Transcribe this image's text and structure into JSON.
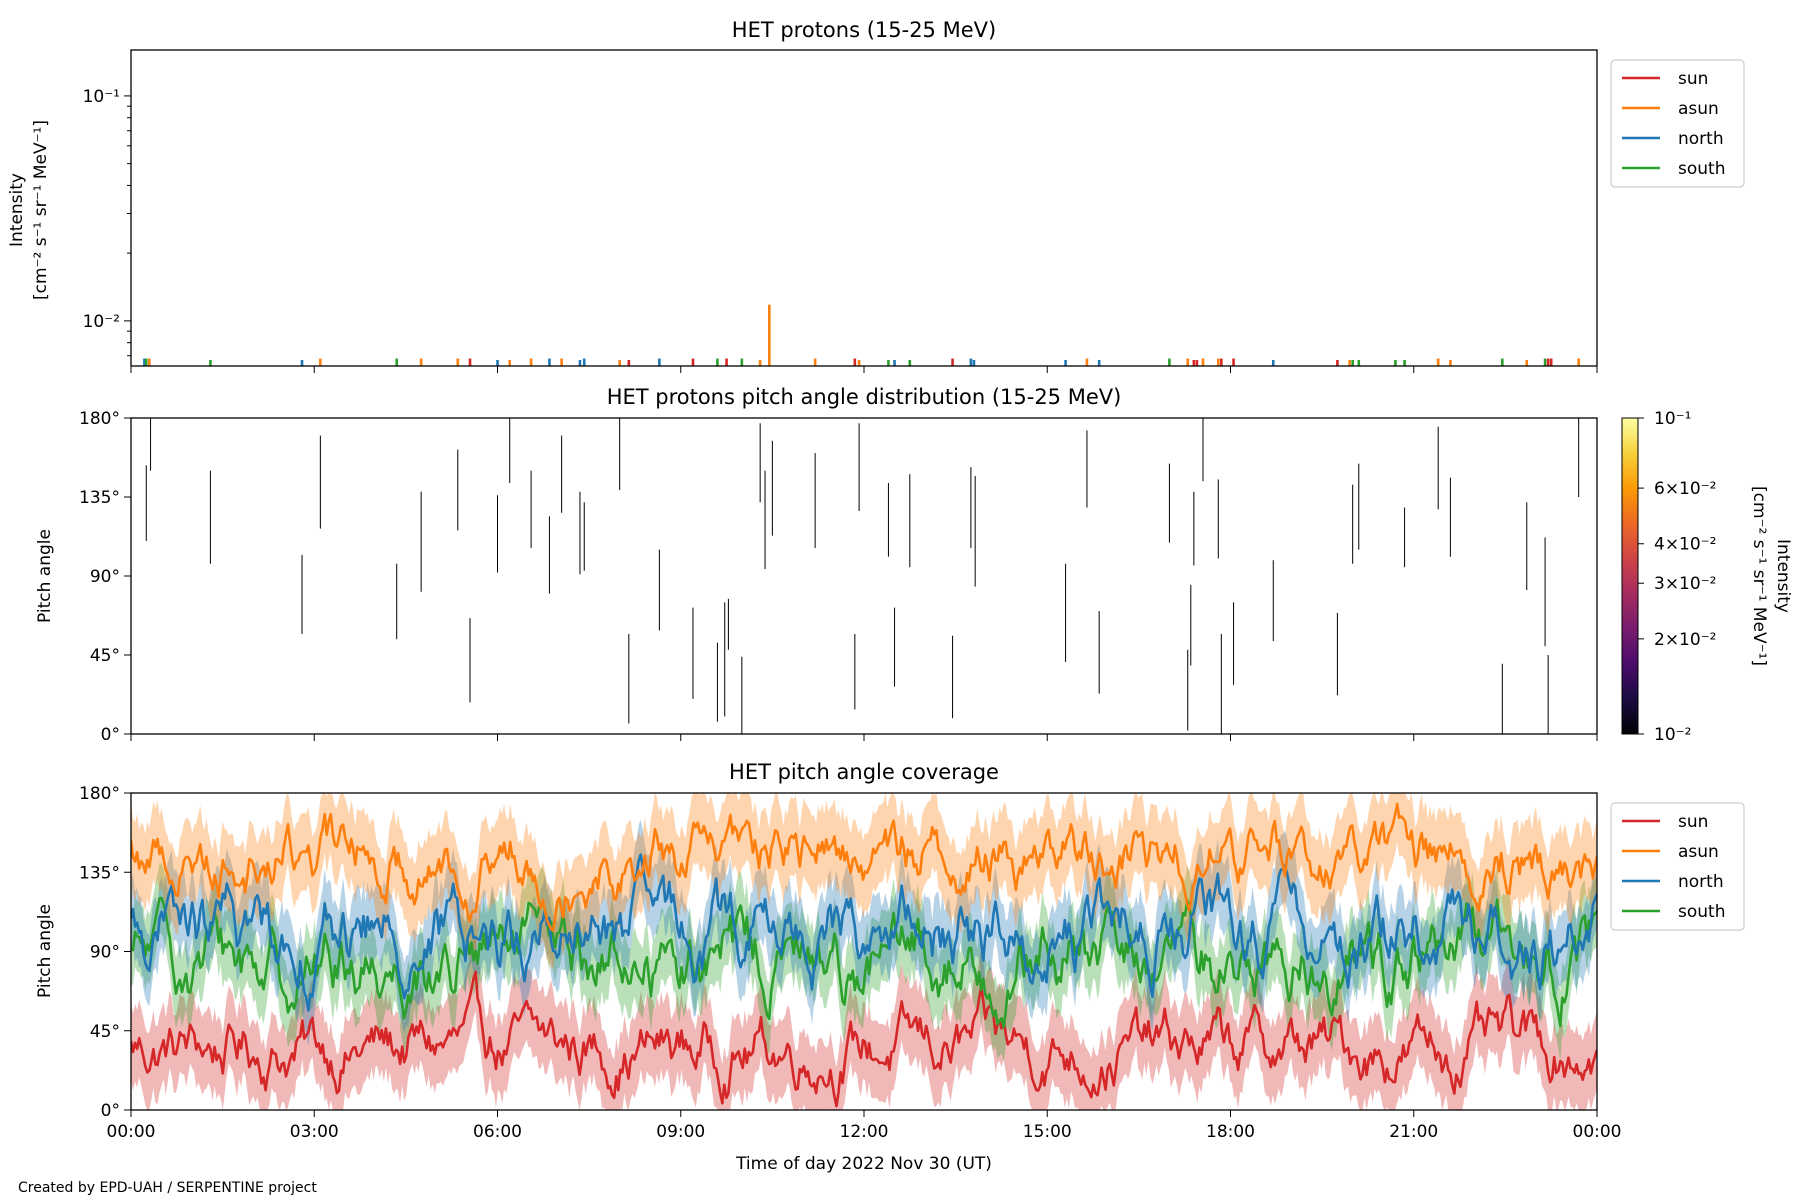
{
  "credit": "Created by EPD-UAH / SERPENTINE project",
  "x_axis": {
    "label": "Time of day 2022 Nov 30 (UT)",
    "ticks": [
      "00:00",
      "03:00",
      "06:00",
      "09:00",
      "12:00",
      "15:00",
      "18:00",
      "21:00",
      "00:00"
    ]
  },
  "legend": [
    {
      "name": "sun",
      "color": "#d62728"
    },
    {
      "name": "asun",
      "color": "#ff7f0e"
    },
    {
      "name": "north",
      "color": "#1f77b4"
    },
    {
      "name": "south",
      "color": "#2ca02c"
    }
  ],
  "chart_data": [
    {
      "type": "line",
      "title": "HET protons (15-25 MeV)",
      "ylabel_line1": "Intensity",
      "ylabel_line2": "[cm⁻² s⁻¹ sr⁻¹ MeV⁻¹]",
      "yscale": "log",
      "ylim": [
        0.0063,
        0.16
      ],
      "x_range_hours": [
        0,
        24
      ],
      "yticks": [
        {
          "value": 0.1,
          "label": "10⁻¹"
        },
        {
          "value": 0.01,
          "label": "10⁻²"
        }
      ],
      "legend_loc": "upper-right-outside",
      "spikes": [
        {
          "hour": 0.22,
          "value": 0.0068,
          "series": "north"
        },
        {
          "hour": 0.25,
          "value": 0.0068,
          "series": "green"
        },
        {
          "hour": 0.3,
          "value": 0.0068,
          "series": "asun"
        },
        {
          "hour": 1.3,
          "value": 0.0067,
          "series": "south"
        },
        {
          "hour": 2.8,
          "value": 0.0067,
          "series": "north"
        },
        {
          "hour": 3.1,
          "value": 0.0068,
          "series": "asun"
        },
        {
          "hour": 4.35,
          "value": 0.0068,
          "series": "south"
        },
        {
          "hour": 4.75,
          "value": 0.0068,
          "series": "asun"
        },
        {
          "hour": 5.35,
          "value": 0.0068,
          "series": "asun"
        },
        {
          "hour": 5.55,
          "value": 0.0068,
          "series": "sun"
        },
        {
          "hour": 6.0,
          "value": 0.0067,
          "series": "north"
        },
        {
          "hour": 6.2,
          "value": 0.0067,
          "series": "asun"
        },
        {
          "hour": 6.55,
          "value": 0.0068,
          "series": "asun"
        },
        {
          "hour": 6.85,
          "value": 0.0068,
          "series": "north"
        },
        {
          "hour": 7.05,
          "value": 0.0068,
          "series": "asun"
        },
        {
          "hour": 7.35,
          "value": 0.0067,
          "series": "north"
        },
        {
          "hour": 7.42,
          "value": 0.0068,
          "series": "north"
        },
        {
          "hour": 8.0,
          "value": 0.0067,
          "series": "asun"
        },
        {
          "hour": 8.15,
          "value": 0.0067,
          "series": "sun"
        },
        {
          "hour": 8.65,
          "value": 0.0068,
          "series": "north"
        },
        {
          "hour": 9.2,
          "value": 0.0068,
          "series": "sun"
        },
        {
          "hour": 9.6,
          "value": 0.0068,
          "series": "south"
        },
        {
          "hour": 9.75,
          "value": 0.0068,
          "series": "sun"
        },
        {
          "hour": 10.0,
          "value": 0.0068,
          "series": "south"
        },
        {
          "hour": 10.3,
          "value": 0.0067,
          "series": "asun"
        },
        {
          "hour": 10.45,
          "value": 0.0118,
          "series": "asun"
        },
        {
          "hour": 11.2,
          "value": 0.0068,
          "series": "asun"
        },
        {
          "hour": 11.85,
          "value": 0.0068,
          "series": "sun"
        },
        {
          "hour": 11.92,
          "value": 0.0067,
          "series": "asun"
        },
        {
          "hour": 12.4,
          "value": 0.0067,
          "series": "south"
        },
        {
          "hour": 12.5,
          "value": 0.0067,
          "series": "north"
        },
        {
          "hour": 12.75,
          "value": 0.0067,
          "series": "south"
        },
        {
          "hour": 13.45,
          "value": 0.0068,
          "series": "sun"
        },
        {
          "hour": 13.75,
          "value": 0.0068,
          "series": "north"
        },
        {
          "hour": 13.8,
          "value": 0.0067,
          "series": "north"
        },
        {
          "hour": 15.3,
          "value": 0.0067,
          "series": "north"
        },
        {
          "hour": 15.65,
          "value": 0.0068,
          "series": "asun"
        },
        {
          "hour": 15.85,
          "value": 0.0067,
          "series": "north"
        },
        {
          "hour": 17.0,
          "value": 0.0068,
          "series": "south"
        },
        {
          "hour": 17.3,
          "value": 0.0068,
          "series": "asun"
        },
        {
          "hour": 17.4,
          "value": 0.0067,
          "series": "sun"
        },
        {
          "hour": 17.45,
          "value": 0.0067,
          "series": "sun"
        },
        {
          "hour": 17.55,
          "value": 0.0068,
          "series": "asun"
        },
        {
          "hour": 17.8,
          "value": 0.0068,
          "series": "asun"
        },
        {
          "hour": 17.85,
          "value": 0.0068,
          "series": "sun"
        },
        {
          "hour": 18.05,
          "value": 0.0068,
          "series": "sun"
        },
        {
          "hour": 18.7,
          "value": 0.0067,
          "series": "north"
        },
        {
          "hour": 19.75,
          "value": 0.0067,
          "series": "sun"
        },
        {
          "hour": 19.95,
          "value": 0.0067,
          "series": "asun"
        },
        {
          "hour": 20.0,
          "value": 0.0067,
          "series": "south"
        },
        {
          "hour": 20.1,
          "value": 0.0067,
          "series": "south"
        },
        {
          "hour": 20.7,
          "value": 0.0067,
          "series": "south"
        },
        {
          "hour": 20.85,
          "value": 0.0067,
          "series": "south"
        },
        {
          "hour": 21.4,
          "value": 0.0068,
          "series": "asun"
        },
        {
          "hour": 21.6,
          "value": 0.0067,
          "series": "asun"
        },
        {
          "hour": 22.45,
          "value": 0.0068,
          "series": "south"
        },
        {
          "hour": 22.85,
          "value": 0.0067,
          "series": "asun"
        },
        {
          "hour": 23.15,
          "value": 0.0068,
          "series": "south"
        },
        {
          "hour": 23.2,
          "value": 0.0068,
          "series": "sun"
        },
        {
          "hour": 23.25,
          "value": 0.0068,
          "series": "sun"
        },
        {
          "hour": 23.7,
          "value": 0.0068,
          "series": "asun"
        }
      ]
    },
    {
      "type": "heatmap",
      "title": "HET protons pitch angle distribution (15-25 MeV)",
      "ylabel": "Pitch angle",
      "ylim": [
        0,
        180
      ],
      "yticks": [
        {
          "value": 0,
          "label": "0°"
        },
        {
          "value": 45,
          "label": "45°"
        },
        {
          "value": 90,
          "label": "90°"
        },
        {
          "value": 135,
          "label": "135°"
        },
        {
          "value": 180,
          "label": "180°"
        }
      ],
      "colorbar": {
        "scale": "log",
        "range": [
          0.01,
          0.1
        ],
        "colors": [
          "#000004",
          "#1b0c41",
          "#4a0c6b",
          "#781c6d",
          "#a52c60",
          "#cf4446",
          "#ed6925",
          "#fb9b06",
          "#f7d13d",
          "#fcffa4"
        ],
        "label_line1": "Intensity",
        "label_line2": "[cm⁻² s⁻¹ sr⁻¹ MeV⁻¹]",
        "ticks": [
          {
            "value": 0.1,
            "label": "10⁻¹"
          },
          {
            "value": 0.06,
            "label": "6×10⁻²"
          },
          {
            "value": 0.04,
            "label": "4×10⁻²"
          },
          {
            "value": 0.03,
            "label": "3×10⁻²"
          },
          {
            "value": 0.02,
            "label": "2×10⁻²"
          },
          {
            "value": 0.01,
            "label": "10⁻²"
          }
        ]
      },
      "segments": [
        [
          0.25,
          110,
          153
        ],
        [
          0.32,
          150,
          180
        ],
        [
          1.3,
          97,
          150
        ],
        [
          2.8,
          57,
          102
        ],
        [
          3.1,
          117,
          170
        ],
        [
          4.35,
          54,
          97
        ],
        [
          4.75,
          81,
          138
        ],
        [
          5.35,
          116,
          162
        ],
        [
          5.55,
          18,
          66
        ],
        [
          6.0,
          92,
          136
        ],
        [
          6.2,
          143,
          180
        ],
        [
          6.55,
          106,
          150
        ],
        [
          6.85,
          80,
          124
        ],
        [
          7.05,
          126,
          170
        ],
        [
          7.35,
          91,
          138
        ],
        [
          7.42,
          93,
          132
        ],
        [
          8.0,
          139,
          180
        ],
        [
          8.15,
          6,
          57
        ],
        [
          8.65,
          59,
          105
        ],
        [
          9.2,
          20,
          72
        ],
        [
          9.6,
          7,
          52
        ],
        [
          9.72,
          10,
          75
        ],
        [
          9.78,
          48,
          77
        ],
        [
          10.0,
          0,
          44
        ],
        [
          10.3,
          132,
          177
        ],
        [
          10.38,
          94,
          150
        ],
        [
          10.5,
          113,
          167
        ],
        [
          11.2,
          106,
          160
        ],
        [
          11.85,
          14,
          57
        ],
        [
          11.92,
          127,
          177
        ],
        [
          12.4,
          101,
          143
        ],
        [
          12.5,
          27,
          72
        ],
        [
          12.75,
          95,
          148
        ],
        [
          13.45,
          9,
          56
        ],
        [
          13.75,
          106,
          152
        ],
        [
          13.82,
          84,
          147
        ],
        [
          15.3,
          41,
          97
        ],
        [
          15.65,
          129,
          173
        ],
        [
          15.85,
          23,
          70
        ],
        [
          17.0,
          109,
          154
        ],
        [
          17.3,
          2,
          48
        ],
        [
          17.35,
          39,
          85
        ],
        [
          17.4,
          96,
          138
        ],
        [
          17.55,
          144,
          180
        ],
        [
          17.8,
          100,
          145
        ],
        [
          17.85,
          0,
          57
        ],
        [
          18.05,
          28,
          75
        ],
        [
          18.7,
          53,
          99
        ],
        [
          19.75,
          22,
          69
        ],
        [
          20.0,
          97,
          142
        ],
        [
          20.1,
          105,
          154
        ],
        [
          20.85,
          95,
          129
        ],
        [
          21.4,
          128,
          175
        ],
        [
          21.6,
          101,
          146
        ],
        [
          22.45,
          0,
          40
        ],
        [
          22.85,
          82,
          132
        ],
        [
          23.15,
          50,
          112
        ],
        [
          23.2,
          0,
          45
        ],
        [
          23.7,
          135,
          180
        ]
      ]
    },
    {
      "type": "line",
      "title": "HET pitch angle coverage",
      "ylabel": "Pitch angle",
      "ylim": [
        0,
        180
      ],
      "x_range_hours": [
        0,
        24
      ],
      "yticks": [
        {
          "value": 0,
          "label": "0°"
        },
        {
          "value": 45,
          "label": "45°"
        },
        {
          "value": 90,
          "label": "90°"
        },
        {
          "value": 135,
          "label": "135°"
        },
        {
          "value": 180,
          "label": "180°"
        }
      ],
      "legend_loc": "upper-right-outside",
      "series": [
        {
          "name": "sun",
          "color": "#d62728",
          "mean": 35,
          "spread": 18,
          "band": 22
        },
        {
          "name": "asun",
          "color": "#ff7f0e",
          "mean": 145,
          "spread": 18,
          "band": 22
        },
        {
          "name": "north",
          "color": "#1f77b4",
          "mean": 100,
          "spread": 22,
          "band": 20
        },
        {
          "name": "south",
          "color": "#2ca02c",
          "mean": 85,
          "spread": 22,
          "band": 20
        }
      ]
    }
  ]
}
